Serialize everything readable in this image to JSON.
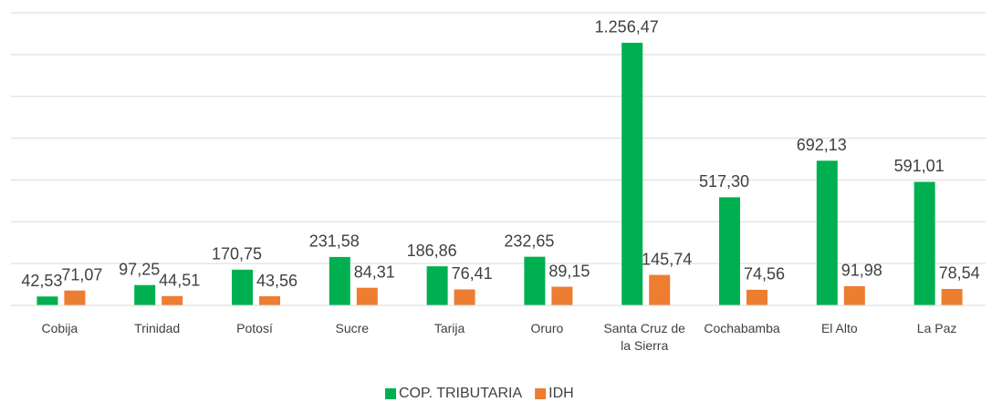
{
  "chart_data": {
    "type": "bar",
    "categories": [
      "Cobija",
      "Trinidad",
      "Potosí",
      "Sucre",
      "Tarija",
      "Oruro",
      "Santa Cruz de la Sierra",
      "Cochabamba",
      "El Alto",
      "La Paz"
    ],
    "series": [
      {
        "name": "COP. TRIBUTARIA",
        "color": "#00b050",
        "values": [
          42.53,
          97.25,
          170.75,
          231.58,
          186.86,
          232.65,
          1256.47,
          517.3,
          692.13,
          591.01
        ],
        "value_labels": [
          "42,53",
          "97,25",
          "170,75",
          "231,58",
          "186,86",
          "232,65",
          "1.256,47",
          "517,30",
          "692,13",
          "591,01"
        ]
      },
      {
        "name": "IDH",
        "color": "#ed7d31",
        "values": [
          71.07,
          44.51,
          43.56,
          84.31,
          76.41,
          89.15,
          145.74,
          74.56,
          91.98,
          78.54
        ],
        "value_labels": [
          "71,07",
          "44,51",
          "43,56",
          "84,31",
          "76,41",
          "89,15",
          "145,74",
          "74,56",
          "91,98",
          "78,54"
        ]
      }
    ],
    "ylim": [
      0,
      1400
    ],
    "yticks": [
      0,
      200,
      400,
      600,
      800,
      1000,
      1200,
      1400
    ],
    "grid": true,
    "legend": "bottom"
  }
}
